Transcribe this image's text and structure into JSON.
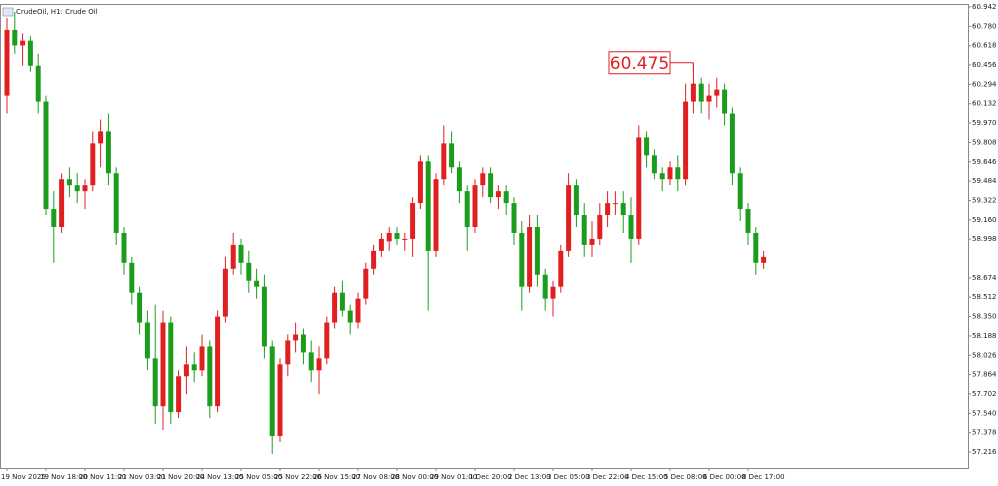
{
  "chart_data": {
    "type": "candlestick",
    "title": "CrudeOil, H1:  Crude Oil",
    "up_color": "#e02020",
    "down_color": "#1c9c1c",
    "categories": [
      "19 Nov 2025",
      null,
      null,
      null,
      null,
      "19 Nov 18:00",
      null,
      null,
      null,
      null,
      "20 Nov 11:00",
      null,
      null,
      null,
      null,
      "21 Nov 03:00",
      null,
      null,
      null,
      null,
      "21 Nov 20:00",
      null,
      null,
      null,
      null,
      "24 Nov 13:00",
      null,
      null,
      null,
      null,
      "25 Nov 05:00",
      null,
      null,
      null,
      null,
      "25 Nov 22:00",
      null,
      null,
      null,
      null,
      "26 Nov 15:00",
      null,
      null,
      null,
      null,
      "27 Nov 08:00",
      null,
      null,
      null,
      null,
      "28 Nov 00:00",
      null,
      null,
      null,
      null,
      "29 Nov 01:00",
      null,
      null,
      null,
      null,
      "1 Dec 20:00",
      null,
      null,
      null,
      null,
      "2 Dec 13:00",
      null,
      null,
      null,
      null,
      "3 Dec 05:00",
      null,
      null,
      null,
      null,
      "3 Dec 22:00",
      null,
      null,
      null,
      null,
      "4 Dec 15:00",
      null,
      null,
      null,
      null,
      "5 Dec 08:00",
      null,
      null,
      null,
      null,
      "6 Dec 00:00",
      null,
      null,
      null,
      null,
      "8 Dec 17:00",
      null,
      null
    ],
    "open": [
      60.2,
      60.75,
      60.62,
      60.66,
      60.45,
      60.15,
      59.25,
      59.1,
      59.5,
      59.45,
      59.4,
      59.45,
      59.8,
      59.9,
      59.55,
      59.05,
      58.8,
      58.55,
      58.3,
      58.0,
      57.6,
      58.3,
      57.55,
      57.85,
      57.95,
      57.9,
      58.1,
      57.6,
      58.35,
      58.75,
      58.95,
      58.8,
      58.65,
      58.6,
      58.1,
      57.35,
      57.95,
      58.15,
      58.2,
      58.05,
      57.9,
      58.0,
      58.3,
      58.55,
      58.4,
      58.3,
      58.5,
      58.75,
      58.9,
      58.98,
      59.05,
      59.0,
      59.0,
      59.3,
      59.65,
      58.9,
      59.5,
      59.8,
      59.6,
      59.4,
      59.1,
      59.45,
      59.55,
      59.35,
      59.4,
      59.3,
      59.05,
      58.6,
      59.1,
      58.7,
      58.5,
      58.6,
      58.9,
      59.45,
      59.2,
      58.95,
      59.0,
      59.2,
      59.3,
      59.3,
      59.2,
      59.0,
      59.85,
      59.7,
      59.55,
      59.5,
      59.6,
      59.5,
      60.15,
      60.3,
      60.15,
      60.2,
      60.25,
      60.05,
      59.55,
      59.25,
      59.05,
      58.8
    ],
    "high": [
      60.85,
      60.9,
      60.72,
      60.7,
      60.55,
      60.2,
      59.4,
      59.55,
      59.6,
      59.55,
      59.5,
      59.9,
      60.0,
      60.05,
      59.6,
      59.1,
      58.85,
      58.6,
      58.4,
      58.45,
      58.4,
      58.35,
      57.9,
      58.1,
      58.05,
      58.2,
      58.15,
      58.4,
      58.85,
      59.05,
      59.0,
      58.9,
      58.75,
      58.7,
      58.15,
      58.0,
      58.2,
      58.3,
      58.25,
      58.15,
      58.1,
      58.35,
      58.6,
      58.65,
      58.45,
      58.55,
      58.8,
      58.95,
      59.05,
      59.1,
      59.1,
      59.05,
      59.35,
      59.7,
      59.7,
      59.55,
      59.95,
      59.9,
      59.65,
      59.45,
      59.5,
      59.6,
      59.6,
      59.45,
      59.45,
      59.35,
      59.15,
      59.2,
      59.2,
      58.75,
      58.65,
      58.95,
      59.55,
      59.5,
      59.3,
      59.15,
      59.3,
      59.4,
      59.4,
      59.4,
      59.35,
      59.95,
      59.9,
      59.75,
      59.6,
      59.65,
      59.7,
      60.3,
      60.475,
      60.35,
      60.3,
      60.35,
      60.3,
      60.1,
      59.6,
      59.3,
      59.1,
      58.9
    ],
    "low": [
      60.05,
      60.55,
      60.45,
      60.4,
      60.05,
      59.2,
      58.8,
      59.05,
      59.35,
      59.3,
      59.25,
      59.4,
      59.6,
      59.45,
      58.95,
      58.7,
      58.45,
      58.2,
      57.9,
      57.45,
      57.4,
      57.45,
      57.5,
      57.7,
      57.8,
      57.85,
      57.5,
      57.55,
      58.3,
      58.7,
      58.7,
      58.55,
      58.5,
      58.0,
      57.2,
      57.3,
      57.85,
      58.05,
      57.95,
      57.8,
      57.7,
      57.95,
      58.25,
      58.35,
      58.2,
      58.25,
      58.45,
      58.7,
      58.85,
      58.9,
      58.95,
      58.9,
      58.85,
      59.25,
      58.4,
      58.85,
      59.45,
      59.55,
      59.3,
      58.9,
      59.05,
      59.35,
      59.3,
      59.25,
      59.2,
      58.95,
      58.4,
      58.55,
      58.6,
      58.4,
      58.35,
      58.55,
      58.85,
      59.1,
      58.85,
      58.85,
      58.95,
      59.1,
      59.2,
      59.05,
      58.8,
      58.95,
      59.6,
      59.5,
      59.4,
      59.45,
      59.4,
      59.45,
      60.05,
      60.05,
      60.0,
      60.1,
      59.95,
      59.45,
      59.15,
      58.95,
      58.7,
      58.75
    ],
    "close": [
      60.75,
      60.62,
      60.66,
      60.45,
      60.15,
      59.25,
      59.1,
      59.5,
      59.45,
      59.4,
      59.45,
      59.8,
      59.9,
      59.55,
      59.05,
      58.8,
      58.55,
      58.3,
      58.0,
      57.6,
      58.3,
      57.55,
      57.85,
      57.95,
      57.9,
      58.1,
      57.6,
      58.35,
      58.75,
      58.95,
      58.8,
      58.65,
      58.6,
      58.1,
      57.35,
      57.95,
      58.15,
      58.2,
      58.05,
      57.9,
      58.0,
      58.3,
      58.55,
      58.4,
      58.3,
      58.5,
      58.75,
      58.9,
      59.0,
      59.05,
      59.0,
      59.0,
      59.3,
      59.65,
      58.9,
      59.5,
      59.8,
      59.6,
      59.4,
      59.1,
      59.45,
      59.55,
      59.35,
      59.4,
      59.3,
      59.05,
      58.6,
      59.1,
      58.7,
      58.5,
      58.6,
      58.9,
      59.45,
      59.2,
      58.95,
      59.0,
      59.2,
      59.3,
      59.3,
      59.2,
      59.0,
      59.85,
      59.7,
      59.55,
      59.5,
      59.6,
      59.5,
      60.15,
      60.3,
      60.15,
      60.2,
      60.25,
      60.05,
      59.55,
      59.25,
      59.05,
      58.8,
      58.85
    ],
    "high_marker": 60.475,
    "ylim": [
      57.082,
      60.967
    ],
    "yticks": [
      60.942,
      {
        "value": 60.78,
        "label": "60.780"
      },
      60.618,
      60.456,
      60.294,
      60.132,
      {
        "value": 59.97,
        "label": "59.970"
      },
      59.808,
      59.646,
      59.484,
      59.322,
      {
        "value": 59.16,
        "label": "59.160"
      },
      58.998,
      58.674,
      58.512,
      {
        "value": 58.35,
        "label": "58.350"
      },
      58.188,
      58.026,
      57.864,
      57.702,
      {
        "value": 57.54,
        "label": "57.540"
      },
      57.378,
      57.216
    ]
  }
}
